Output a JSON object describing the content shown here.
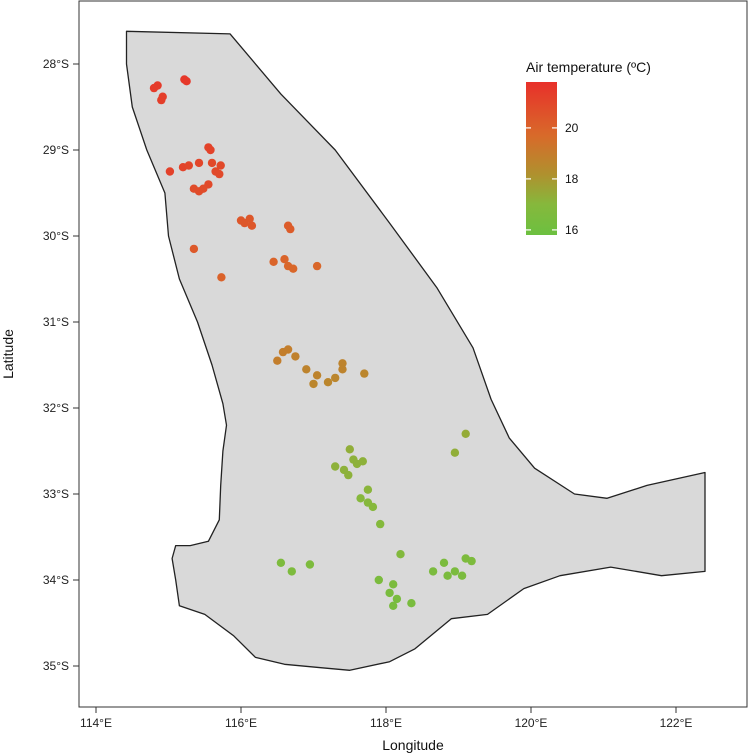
{
  "map": {
    "x_axis_title": "Longitude",
    "y_axis_title": "Latitude",
    "x_ticks": [
      {
        "value": 114,
        "label": "114°E"
      },
      {
        "value": 116,
        "label": "116°E"
      },
      {
        "value": 118,
        "label": "118°E"
      },
      {
        "value": 120,
        "label": "120°E"
      },
      {
        "value": 122,
        "label": "122°E"
      }
    ],
    "y_ticks": [
      {
        "value": -28,
        "label": "28°S"
      },
      {
        "value": -29,
        "label": "29°S"
      },
      {
        "value": -30,
        "label": "30°S"
      },
      {
        "value": -31,
        "label": "31°S"
      },
      {
        "value": -32,
        "label": "32°S"
      },
      {
        "value": -33,
        "label": "33°S"
      },
      {
        "value": -34,
        "label": "34°S"
      },
      {
        "value": -35,
        "label": "35°S"
      }
    ],
    "land_color": "#d9d9d9",
    "outline_color": "#222222"
  },
  "legend": {
    "title": "Air temperature (ºC)",
    "min": 15.8,
    "max": 21.8,
    "ticks": [
      {
        "value": 20,
        "label": "20"
      },
      {
        "value": 18,
        "label": "18"
      },
      {
        "value": 16,
        "label": "16"
      }
    ],
    "color_low": "#6cc040",
    "color_high": "#e8302a"
  },
  "region_outline": [
    [
      114.42,
      -27.62
    ],
    [
      115.85,
      -27.65
    ],
    [
      116.55,
      -28.35
    ],
    [
      117.3,
      -29.0
    ],
    [
      118.05,
      -29.85
    ],
    [
      118.7,
      -30.6
    ],
    [
      119.2,
      -31.3
    ],
    [
      119.45,
      -31.9
    ],
    [
      119.7,
      -32.35
    ],
    [
      120.05,
      -32.7
    ],
    [
      120.6,
      -33.0
    ],
    [
      121.05,
      -33.05
    ],
    [
      121.6,
      -32.9
    ],
    [
      122.4,
      -32.75
    ],
    [
      122.4,
      -33.9
    ],
    [
      121.8,
      -33.95
    ],
    [
      121.1,
      -33.85
    ],
    [
      120.4,
      -33.95
    ],
    [
      119.9,
      -34.1
    ],
    [
      119.4,
      -34.4
    ],
    [
      118.9,
      -34.45
    ],
    [
      118.4,
      -34.8
    ],
    [
      118.05,
      -34.95
    ],
    [
      117.5,
      -35.05
    ],
    [
      117.1,
      -35.02
    ],
    [
      116.6,
      -34.98
    ],
    [
      116.2,
      -34.9
    ],
    [
      115.9,
      -34.65
    ],
    [
      115.5,
      -34.4
    ],
    [
      115.15,
      -34.3
    ],
    [
      115.1,
      -34.0
    ],
    [
      115.05,
      -33.75
    ],
    [
      115.1,
      -33.6
    ],
    [
      115.3,
      -33.6
    ],
    [
      115.55,
      -33.55
    ],
    [
      115.7,
      -33.3
    ],
    [
      115.72,
      -32.9
    ],
    [
      115.75,
      -32.5
    ],
    [
      115.8,
      -32.2
    ],
    [
      115.75,
      -31.95
    ],
    [
      115.6,
      -31.5
    ],
    [
      115.4,
      -31.0
    ],
    [
      115.15,
      -30.5
    ],
    [
      115.0,
      -30.0
    ],
    [
      114.95,
      -29.5
    ],
    [
      114.7,
      -29.0
    ],
    [
      114.5,
      -28.5
    ],
    [
      114.42,
      -28.0
    ],
    [
      114.42,
      -27.62
    ]
  ],
  "points": [
    {
      "lon": 114.85,
      "lat": -28.25,
      "t": 21.4
    },
    {
      "lon": 114.8,
      "lat": -28.28,
      "t": 21.4
    },
    {
      "lon": 114.9,
      "lat": -28.42,
      "t": 21.3
    },
    {
      "lon": 114.92,
      "lat": -28.38,
      "t": 21.3
    },
    {
      "lon": 115.22,
      "lat": -28.18,
      "t": 21.5
    },
    {
      "lon": 115.25,
      "lat": -28.2,
      "t": 21.5
    },
    {
      "lon": 115.55,
      "lat": -28.97,
      "t": 21.1
    },
    {
      "lon": 115.58,
      "lat": -29.0,
      "t": 21.1
    },
    {
      "lon": 115.02,
      "lat": -29.25,
      "t": 21.2
    },
    {
      "lon": 115.2,
      "lat": -29.2,
      "t": 21.1
    },
    {
      "lon": 115.28,
      "lat": -29.18,
      "t": 21.0
    },
    {
      "lon": 115.42,
      "lat": -29.15,
      "t": 21.0
    },
    {
      "lon": 115.6,
      "lat": -29.15,
      "t": 20.9
    },
    {
      "lon": 115.65,
      "lat": -29.25,
      "t": 20.9
    },
    {
      "lon": 115.72,
      "lat": -29.18,
      "t": 20.9
    },
    {
      "lon": 115.7,
      "lat": -29.28,
      "t": 20.9
    },
    {
      "lon": 115.55,
      "lat": -29.4,
      "t": 20.9
    },
    {
      "lon": 115.35,
      "lat": -29.45,
      "t": 20.8
    },
    {
      "lon": 115.42,
      "lat": -29.48,
      "t": 20.8
    },
    {
      "lon": 115.48,
      "lat": -29.45,
      "t": 20.8
    },
    {
      "lon": 116.0,
      "lat": -29.82,
      "t": 20.4
    },
    {
      "lon": 116.05,
      "lat": -29.85,
      "t": 20.4
    },
    {
      "lon": 116.12,
      "lat": -29.8,
      "t": 20.4
    },
    {
      "lon": 116.15,
      "lat": -29.88,
      "t": 20.4
    },
    {
      "lon": 116.65,
      "lat": -29.88,
      "t": 20.2
    },
    {
      "lon": 116.68,
      "lat": -29.92,
      "t": 20.2
    },
    {
      "lon": 115.35,
      "lat": -30.15,
      "t": 20.3
    },
    {
      "lon": 115.73,
      "lat": -30.48,
      "t": 20.0
    },
    {
      "lon": 116.45,
      "lat": -30.3,
      "t": 19.9
    },
    {
      "lon": 116.6,
      "lat": -30.27,
      "t": 19.9
    },
    {
      "lon": 116.65,
      "lat": -30.35,
      "t": 19.8
    },
    {
      "lon": 116.72,
      "lat": -30.38,
      "t": 19.8
    },
    {
      "lon": 117.05,
      "lat": -30.35,
      "t": 19.8
    },
    {
      "lon": 116.58,
      "lat": -31.35,
      "t": 18.9
    },
    {
      "lon": 116.65,
      "lat": -31.32,
      "t": 18.9
    },
    {
      "lon": 116.5,
      "lat": -31.45,
      "t": 18.9
    },
    {
      "lon": 116.75,
      "lat": -31.4,
      "t": 18.8
    },
    {
      "lon": 116.9,
      "lat": -31.55,
      "t": 18.7
    },
    {
      "lon": 117.05,
      "lat": -31.62,
      "t": 18.7
    },
    {
      "lon": 117.0,
      "lat": -31.72,
      "t": 18.6
    },
    {
      "lon": 117.2,
      "lat": -31.7,
      "t": 18.6
    },
    {
      "lon": 117.3,
      "lat": -31.65,
      "t": 18.6
    },
    {
      "lon": 117.4,
      "lat": -31.48,
      "t": 18.7
    },
    {
      "lon": 117.4,
      "lat": -31.55,
      "t": 18.7
    },
    {
      "lon": 117.7,
      "lat": -31.6,
      "t": 18.6
    },
    {
      "lon": 117.5,
      "lat": -32.48,
      "t": 17.3
    },
    {
      "lon": 117.55,
      "lat": -32.6,
      "t": 17.2
    },
    {
      "lon": 117.3,
      "lat": -32.68,
      "t": 17.2
    },
    {
      "lon": 117.42,
      "lat": -32.72,
      "t": 17.2
    },
    {
      "lon": 117.48,
      "lat": -32.78,
      "t": 17.2
    },
    {
      "lon": 117.6,
      "lat": -32.65,
      "t": 17.2
    },
    {
      "lon": 117.68,
      "lat": -32.62,
      "t": 17.2
    },
    {
      "lon": 117.75,
      "lat": -32.95,
      "t": 17.1
    },
    {
      "lon": 117.65,
      "lat": -33.05,
      "t": 17.0
    },
    {
      "lon": 117.75,
      "lat": -33.1,
      "t": 17.0
    },
    {
      "lon": 117.82,
      "lat": -33.15,
      "t": 17.0
    },
    {
      "lon": 117.92,
      "lat": -33.35,
      "t": 16.9
    },
    {
      "lon": 119.1,
      "lat": -32.3,
      "t": 17.4
    },
    {
      "lon": 118.95,
      "lat": -32.52,
      "t": 17.3
    },
    {
      "lon": 118.2,
      "lat": -33.7,
      "t": 16.8
    },
    {
      "lon": 116.55,
      "lat": -33.8,
      "t": 16.6
    },
    {
      "lon": 116.7,
      "lat": -33.9,
      "t": 16.6
    },
    {
      "lon": 116.95,
      "lat": -33.82,
      "t": 16.6
    },
    {
      "lon": 117.9,
      "lat": -34.0,
      "t": 16.5
    },
    {
      "lon": 118.1,
      "lat": -34.05,
      "t": 16.5
    },
    {
      "lon": 118.05,
      "lat": -34.15,
      "t": 16.4
    },
    {
      "lon": 118.15,
      "lat": -34.22,
      "t": 16.4
    },
    {
      "lon": 118.1,
      "lat": -34.3,
      "t": 16.4
    },
    {
      "lon": 118.35,
      "lat": -34.27,
      "t": 16.4
    },
    {
      "lon": 118.65,
      "lat": -33.9,
      "t": 16.5
    },
    {
      "lon": 118.8,
      "lat": -33.8,
      "t": 16.5
    },
    {
      "lon": 118.85,
      "lat": -33.95,
      "t": 16.5
    },
    {
      "lon": 118.95,
      "lat": -33.9,
      "t": 16.5
    },
    {
      "lon": 119.05,
      "lat": -33.95,
      "t": 16.5
    },
    {
      "lon": 119.1,
      "lat": -33.75,
      "t": 16.6
    },
    {
      "lon": 119.18,
      "lat": -33.78,
      "t": 16.6
    }
  ]
}
